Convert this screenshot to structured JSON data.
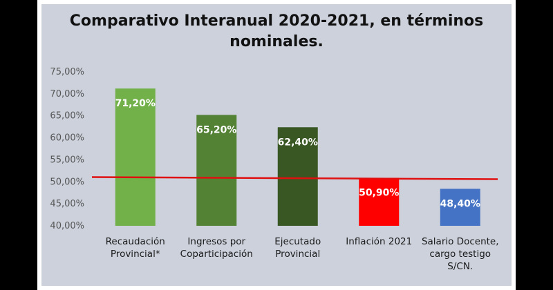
{
  "chart_data": {
    "type": "bar",
    "title": "Comparativo Interanual 2020-2021, en términos nominales.",
    "categories": [
      [
        "Recaudación",
        "Provincial*"
      ],
      [
        "Ingresos por",
        "Coparticipación"
      ],
      [
        "Ejecutado",
        "Provincial"
      ],
      [
        "Inflación 2021"
      ],
      [
        "Salario Docente,",
        "cargo testigo",
        "S/CN."
      ]
    ],
    "values": [
      71.2,
      65.2,
      62.4,
      50.9,
      48.4
    ],
    "data_labels": [
      "71,20%",
      "65,20%",
      "62,40%",
      "50,90%",
      "48,40%"
    ],
    "bar_colors": [
      "#72b14a",
      "#548235",
      "#385723",
      "#ff0000",
      "#4472c4"
    ],
    "reference_line": {
      "value": 50.9,
      "color": "#e01010"
    },
    "ylim": [
      40,
      75
    ],
    "yticks": [
      40,
      45,
      50,
      55,
      60,
      65,
      70,
      75
    ],
    "ytick_labels": [
      "40,00%",
      "45,00%",
      "50,00%",
      "55,00%",
      "60,00%",
      "65,00%",
      "70,00%",
      "75,00%"
    ],
    "xlabel": "",
    "ylabel": "",
    "grid": false,
    "legend": "none"
  }
}
